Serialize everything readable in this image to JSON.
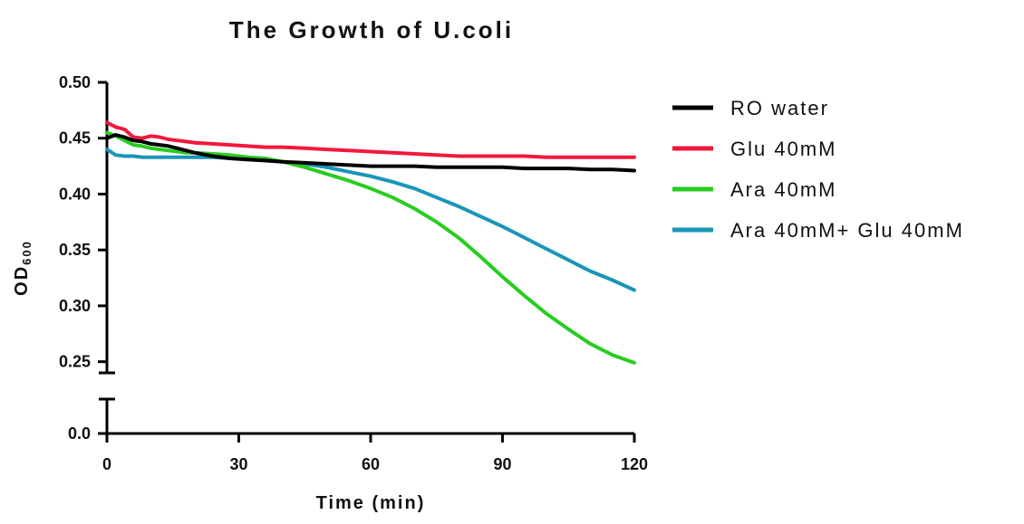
{
  "chart_data": {
    "type": "line",
    "title": "The Growth of U.coli",
    "xlabel": "Time (min)",
    "ylabel": {
      "main": "OD",
      "subscript": "600"
    },
    "xlim": [
      0,
      120
    ],
    "ylim_upper": [
      0.24,
      0.5
    ],
    "ylim_lower": [
      0.0,
      0.01
    ],
    "axis_break": true,
    "x_ticks": [
      0,
      30,
      60,
      90,
      120
    ],
    "x_tick_labels": [
      "0",
      "30",
      "60",
      "90",
      "120"
    ],
    "y_ticks_upper": [
      0.25,
      0.3,
      0.35,
      0.4,
      0.45,
      0.5
    ],
    "y_tick_labels_upper": [
      "0.25",
      "0.30",
      "0.35",
      "0.40",
      "0.45",
      "0.50"
    ],
    "y_ticks_lower": [
      0.0
    ],
    "y_tick_labels_lower": [
      "0.0"
    ],
    "grid": false,
    "legend_position": "right",
    "series": [
      {
        "name": "RO water",
        "color": "#000000",
        "points": [
          [
            0,
            0.45
          ],
          [
            2,
            0.453
          ],
          [
            4,
            0.451
          ],
          [
            6,
            0.448
          ],
          [
            8,
            0.447
          ],
          [
            10,
            0.445
          ],
          [
            12,
            0.444
          ],
          [
            14,
            0.443
          ],
          [
            16,
            0.441
          ],
          [
            18,
            0.439
          ],
          [
            20,
            0.437
          ],
          [
            24,
            0.434
          ],
          [
            28,
            0.432
          ],
          [
            32,
            0.431
          ],
          [
            36,
            0.43
          ],
          [
            40,
            0.429
          ],
          [
            45,
            0.428
          ],
          [
            50,
            0.427
          ],
          [
            55,
            0.426
          ],
          [
            60,
            0.425
          ],
          [
            65,
            0.425
          ],
          [
            70,
            0.425
          ],
          [
            75,
            0.424
          ],
          [
            80,
            0.424
          ],
          [
            85,
            0.424
          ],
          [
            90,
            0.424
          ],
          [
            95,
            0.423
          ],
          [
            100,
            0.423
          ],
          [
            105,
            0.423
          ],
          [
            110,
            0.422
          ],
          [
            115,
            0.422
          ],
          [
            120,
            0.421
          ]
        ]
      },
      {
        "name": "Glu 40mM",
        "color": "#f2183d",
        "points": [
          [
            0,
            0.464
          ],
          [
            2,
            0.46
          ],
          [
            4,
            0.458
          ],
          [
            6,
            0.451
          ],
          [
            8,
            0.45
          ],
          [
            10,
            0.452
          ],
          [
            12,
            0.451
          ],
          [
            14,
            0.449
          ],
          [
            16,
            0.448
          ],
          [
            18,
            0.447
          ],
          [
            20,
            0.446
          ],
          [
            24,
            0.445
          ],
          [
            28,
            0.444
          ],
          [
            32,
            0.443
          ],
          [
            36,
            0.442
          ],
          [
            40,
            0.442
          ],
          [
            45,
            0.441
          ],
          [
            50,
            0.44
          ],
          [
            55,
            0.439
          ],
          [
            60,
            0.438
          ],
          [
            65,
            0.437
          ],
          [
            70,
            0.436
          ],
          [
            75,
            0.435
          ],
          [
            80,
            0.434
          ],
          [
            85,
            0.434
          ],
          [
            90,
            0.434
          ],
          [
            95,
            0.434
          ],
          [
            100,
            0.433
          ],
          [
            105,
            0.433
          ],
          [
            110,
            0.433
          ],
          [
            115,
            0.433
          ],
          [
            120,
            0.433
          ]
        ]
      },
      {
        "name": "Ara 40mM",
        "color": "#29cc21",
        "points": [
          [
            0,
            0.455
          ],
          [
            2,
            0.452
          ],
          [
            4,
            0.448
          ],
          [
            6,
            0.444
          ],
          [
            8,
            0.443
          ],
          [
            10,
            0.441
          ],
          [
            12,
            0.44
          ],
          [
            14,
            0.439
          ],
          [
            16,
            0.438
          ],
          [
            18,
            0.437
          ],
          [
            20,
            0.437
          ],
          [
            24,
            0.436
          ],
          [
            28,
            0.435
          ],
          [
            32,
            0.433
          ],
          [
            36,
            0.432
          ],
          [
            40,
            0.429
          ],
          [
            45,
            0.424
          ],
          [
            50,
            0.418
          ],
          [
            55,
            0.412
          ],
          [
            60,
            0.405
          ],
          [
            65,
            0.397
          ],
          [
            70,
            0.387
          ],
          [
            75,
            0.375
          ],
          [
            80,
            0.361
          ],
          [
            85,
            0.344
          ],
          [
            90,
            0.326
          ],
          [
            95,
            0.309
          ],
          [
            100,
            0.293
          ],
          [
            105,
            0.279
          ],
          [
            110,
            0.266
          ],
          [
            115,
            0.256
          ],
          [
            120,
            0.249
          ]
        ]
      },
      {
        "name": "Ara 40mM+ Glu 40mM",
        "color": "#1a95b8",
        "points": [
          [
            0,
            0.44
          ],
          [
            2,
            0.435
          ],
          [
            4,
            0.434
          ],
          [
            6,
            0.434
          ],
          [
            8,
            0.433
          ],
          [
            10,
            0.433
          ],
          [
            12,
            0.433
          ],
          [
            14,
            0.433
          ],
          [
            16,
            0.433
          ],
          [
            18,
            0.433
          ],
          [
            20,
            0.433
          ],
          [
            24,
            0.433
          ],
          [
            28,
            0.432
          ],
          [
            32,
            0.431
          ],
          [
            36,
            0.43
          ],
          [
            40,
            0.429
          ],
          [
            45,
            0.427
          ],
          [
            50,
            0.424
          ],
          [
            55,
            0.42
          ],
          [
            60,
            0.416
          ],
          [
            65,
            0.411
          ],
          [
            70,
            0.405
          ],
          [
            75,
            0.397
          ],
          [
            80,
            0.389
          ],
          [
            85,
            0.38
          ],
          [
            90,
            0.371
          ],
          [
            95,
            0.361
          ],
          [
            100,
            0.351
          ],
          [
            105,
            0.341
          ],
          [
            110,
            0.331
          ],
          [
            115,
            0.323
          ],
          [
            120,
            0.314
          ]
        ]
      }
    ]
  }
}
